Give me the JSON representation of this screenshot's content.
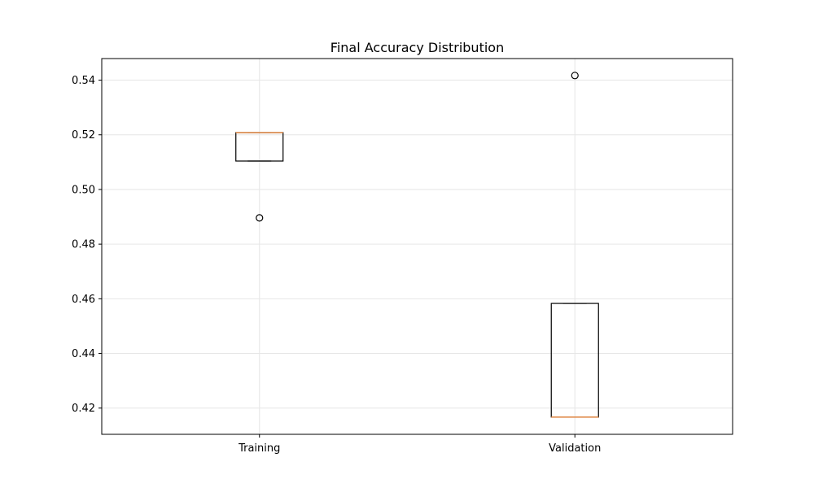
{
  "chart_data": {
    "type": "box",
    "title": "Final Accuracy Distribution",
    "xlabel": "",
    "ylabel": "",
    "categories": [
      "Training",
      "Validation"
    ],
    "boxes": [
      {
        "name": "Training",
        "whisker_low": 0.5104,
        "q1": 0.5104,
        "median": 0.5208,
        "q3": 0.5208,
        "whisker_high": 0.5208,
        "outliers": [
          0.4896
        ]
      },
      {
        "name": "Validation",
        "whisker_low": 0.4167,
        "q1": 0.4167,
        "median": 0.4167,
        "q3": 0.4583,
        "whisker_high": 0.4583,
        "outliers": [
          0.5417
        ]
      }
    ],
    "yticks": [
      0.42,
      0.44,
      0.46,
      0.48,
      0.5,
      0.52,
      0.54
    ],
    "ytick_labels": [
      "0.42",
      "0.44",
      "0.46",
      "0.48",
      "0.50",
      "0.52",
      "0.54"
    ],
    "ylim": [
      0.4104,
      0.5479
    ],
    "grid": true,
    "colors": {
      "box": "#000000",
      "median": "#e08c4c",
      "grid": "#e6e6e6",
      "outlier": "#000000"
    }
  }
}
